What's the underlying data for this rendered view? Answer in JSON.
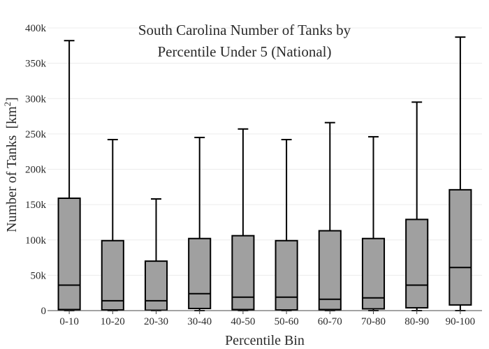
{
  "chart_data": {
    "type": "box",
    "title_lines": [
      "South Carolina Number of Tanks by",
      "Percentile Under 5 (National)"
    ],
    "xlabel": "Percentile Bin",
    "ylabel_main": "Number of Tanks",
    "ylabel_unit_base": "[km",
    "ylabel_unit_sup": "2",
    "ylabel_unit_close": "]",
    "ylim": [
      0,
      400000
    ],
    "yticks": [
      0,
      50000,
      100000,
      150000,
      200000,
      250000,
      300000,
      350000,
      400000
    ],
    "ytick_labels": [
      "0",
      "50k",
      "100k",
      "150k",
      "200k",
      "250k",
      "300k",
      "350k",
      "400k"
    ],
    "grid": true,
    "legend": "none",
    "box_fill": "#a0a0a0",
    "box_stroke": "#000000",
    "categories": [
      "0-10",
      "10-20",
      "20-30",
      "30-40",
      "40-50",
      "50-60",
      "60-70",
      "70-80",
      "80-90",
      "90-100"
    ],
    "boxes": [
      {
        "min": 0,
        "q1": 1500,
        "median": 36000,
        "q3": 159000,
        "max": 382000
      },
      {
        "min": 0,
        "q1": 1000,
        "median": 14000,
        "q3": 99000,
        "max": 242000
      },
      {
        "min": 0,
        "q1": 500,
        "median": 14000,
        "q3": 70000,
        "max": 158000
      },
      {
        "min": 0,
        "q1": 3000,
        "median": 24000,
        "q3": 102000,
        "max": 245000
      },
      {
        "min": 0,
        "q1": 1500,
        "median": 19000,
        "q3": 106000,
        "max": 257000
      },
      {
        "min": 0,
        "q1": 1000,
        "median": 19000,
        "q3": 99000,
        "max": 242000
      },
      {
        "min": 0,
        "q1": 1500,
        "median": 16000,
        "q3": 113000,
        "max": 266000
      },
      {
        "min": 0,
        "q1": 2500,
        "median": 18000,
        "q3": 102000,
        "max": 246000
      },
      {
        "min": 0,
        "q1": 4000,
        "median": 36000,
        "q3": 129000,
        "max": 295000
      },
      {
        "min": 0,
        "q1": 8000,
        "median": 61000,
        "q3": 171000,
        "max": 387000
      }
    ]
  }
}
